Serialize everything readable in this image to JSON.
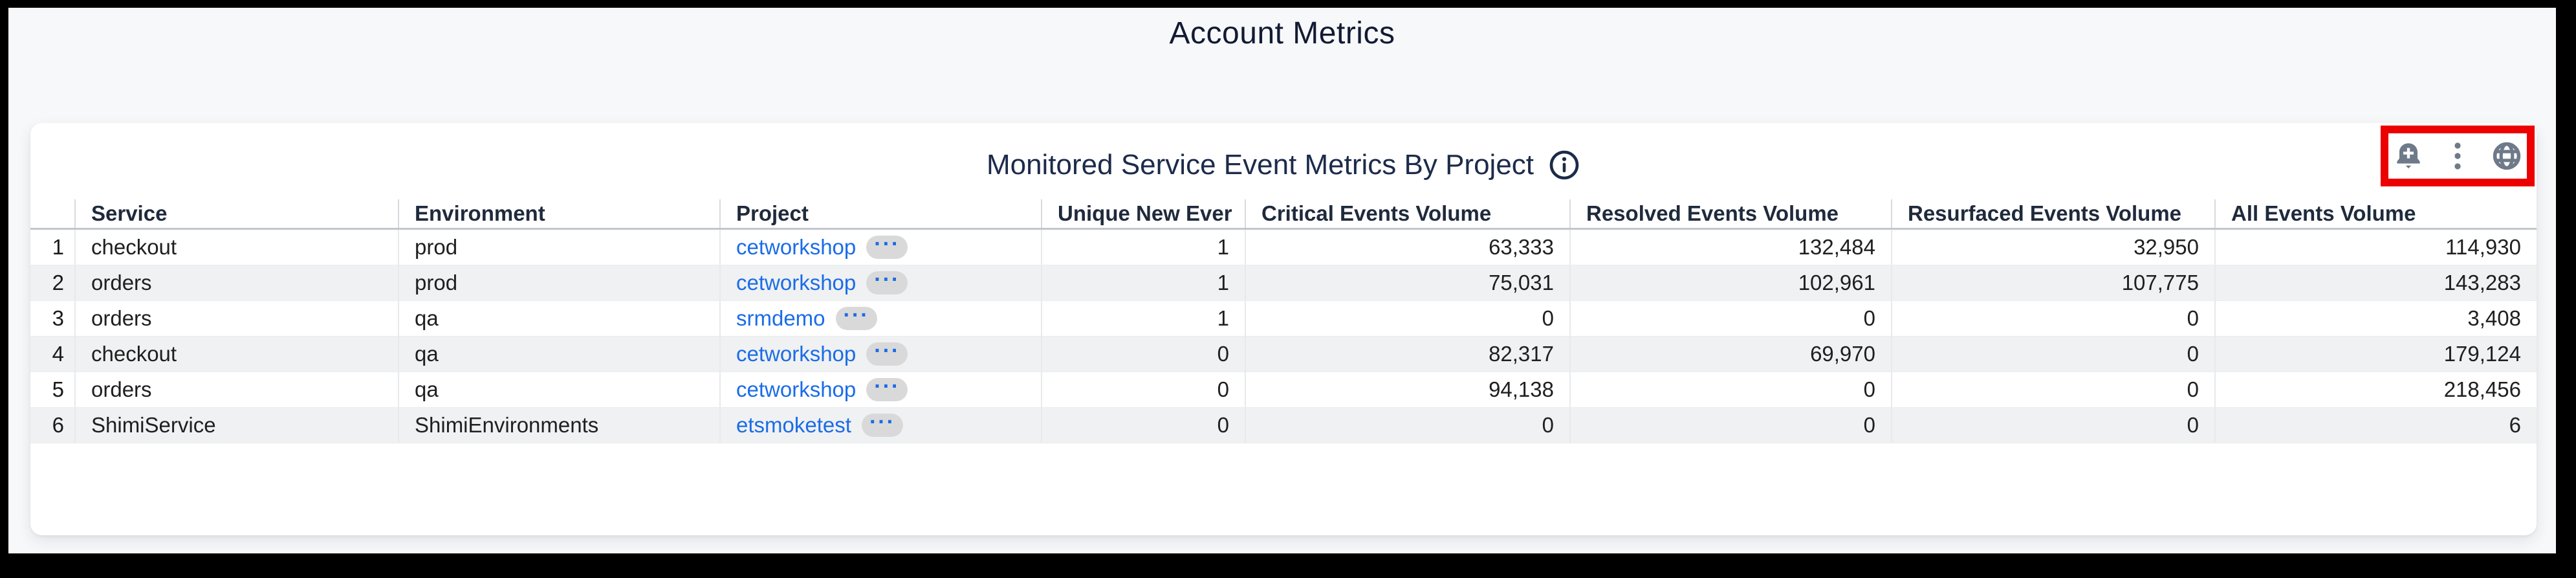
{
  "page": {
    "title": "Account Metrics"
  },
  "panel": {
    "title": "Monitored Service Event Metrics By Project",
    "info_icon": "info-circle",
    "toolbar_icons": [
      "bell-plus",
      "kebab-menu",
      "globe"
    ],
    "highlight_color": "#ec0000"
  },
  "table": {
    "project_badge": "···",
    "columns": [
      {
        "key": "num",
        "label": "",
        "align": "right",
        "type": "rownum"
      },
      {
        "key": "service",
        "label": "Service",
        "align": "left",
        "type": "text"
      },
      {
        "key": "environment",
        "label": "Environment",
        "align": "left",
        "type": "text"
      },
      {
        "key": "project",
        "label": "Project",
        "align": "left",
        "type": "link"
      },
      {
        "key": "unique",
        "label": "Unique New Ever",
        "align": "right",
        "type": "num",
        "sorted": true
      },
      {
        "key": "critical",
        "label": "Critical Events Volume",
        "align": "right",
        "type": "num"
      },
      {
        "key": "resolved",
        "label": "Resolved Events Volume",
        "align": "right",
        "type": "num"
      },
      {
        "key": "resurfaced",
        "label": "Resurfaced Events Volume",
        "align": "right",
        "type": "num"
      },
      {
        "key": "all",
        "label": "All Events Volume",
        "align": "right",
        "type": "num"
      }
    ],
    "rows": [
      {
        "num": "1",
        "service": "checkout",
        "environment": "prod",
        "project": "cetworkshop",
        "unique": "1",
        "critical": "63,333",
        "resolved": "132,484",
        "resurfaced": "32,950",
        "all": "114,930"
      },
      {
        "num": "2",
        "service": "orders",
        "environment": "prod",
        "project": "cetworkshop",
        "unique": "1",
        "critical": "75,031",
        "resolved": "102,961",
        "resurfaced": "107,775",
        "all": "143,283"
      },
      {
        "num": "3",
        "service": "orders",
        "environment": "qa",
        "project": "srmdemo",
        "unique": "1",
        "critical": "0",
        "resolved": "0",
        "resurfaced": "0",
        "all": "3,408"
      },
      {
        "num": "4",
        "service": "checkout",
        "environment": "qa",
        "project": "cetworkshop",
        "unique": "0",
        "critical": "82,317",
        "resolved": "69,970",
        "resurfaced": "0",
        "all": "179,124"
      },
      {
        "num": "5",
        "service": "orders",
        "environment": "qa",
        "project": "cetworkshop",
        "unique": "0",
        "critical": "94,138",
        "resolved": "0",
        "resurfaced": "0",
        "all": "218,456"
      },
      {
        "num": "6",
        "service": "ShimiService",
        "environment": "ShimiEnvironments",
        "project": "etsmoketest",
        "unique": "0",
        "critical": "0",
        "resolved": "0",
        "resurfaced": "0",
        "all": "6"
      }
    ]
  },
  "colors": {
    "link_blue": "#1a6ce8",
    "highlight_red": "#ec0000",
    "icon_gray": "#6e7a8a",
    "title_navy": "#1c2b4a"
  }
}
